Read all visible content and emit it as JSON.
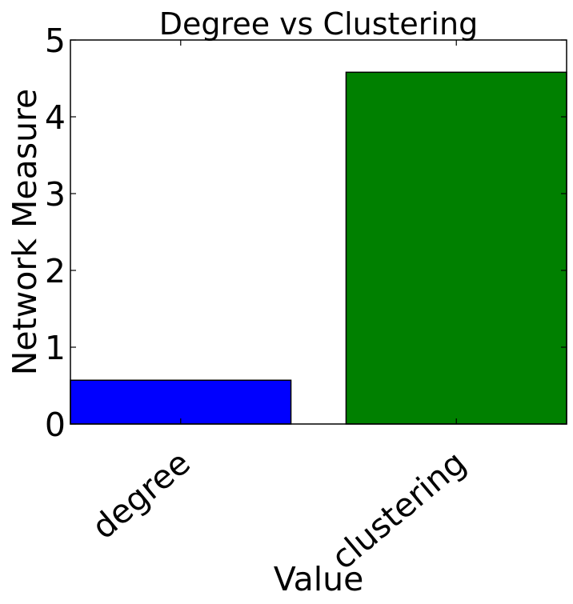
{
  "chart_data": {
    "type": "bar",
    "title": "Degree vs Clustering",
    "xlabel": "Value",
    "ylabel": "Network Measure",
    "categories": [
      "degree",
      "clustering"
    ],
    "values": [
      0.57,
      4.58
    ],
    "colors": [
      "#0000ff",
      "#008000"
    ],
    "ylim": [
      0,
      5
    ],
    "yticks": [
      0,
      1,
      2,
      3,
      4,
      5
    ],
    "grid": false,
    "legend": "none"
  }
}
